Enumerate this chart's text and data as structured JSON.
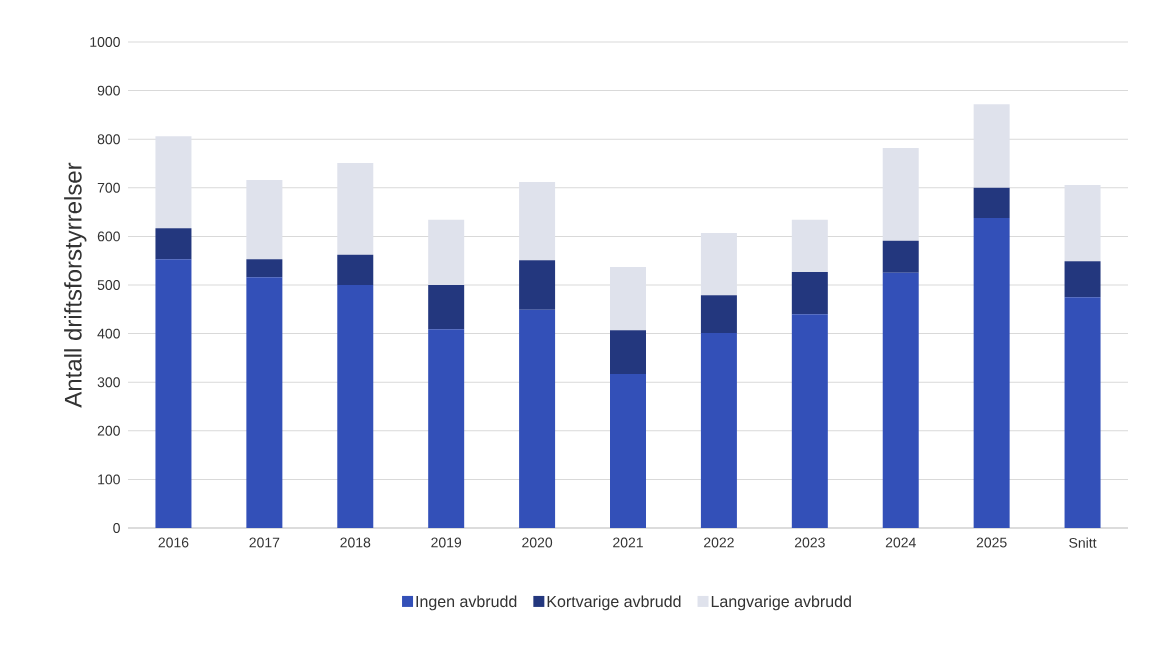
{
  "chart_data": {
    "type": "bar",
    "stacked": true,
    "ylabel": "Antall driftsforstyrrelser",
    "categories": [
      "2016",
      "2017",
      "2018",
      "2019",
      "2020",
      "2021",
      "2022",
      "2023",
      "2024",
      "2025",
      "Snitt"
    ],
    "series": [
      {
        "name": "Ingen avbrudd",
        "color": "#3350b8",
        "values": [
          553,
          516,
          500,
          409,
          449,
          317,
          401,
          440,
          525,
          638,
          475
        ]
      },
      {
        "name": "Kortvarige avbrudd",
        "color": "#23377e",
        "values": [
          64,
          37,
          62,
          91,
          102,
          90,
          78,
          87,
          66,
          62,
          74
        ]
      },
      {
        "name": "Langvarige avbrudd",
        "color": "#dfe2ec",
        "values": [
          189,
          163,
          189,
          134,
          161,
          130,
          128,
          107,
          191,
          172,
          157
        ]
      }
    ],
    "ylim": [
      0,
      1000
    ],
    "yticks": [
      0,
      100,
      200,
      300,
      400,
      500,
      600,
      700,
      800,
      900,
      1000
    ],
    "grid": "y",
    "legend": "bottom"
  }
}
